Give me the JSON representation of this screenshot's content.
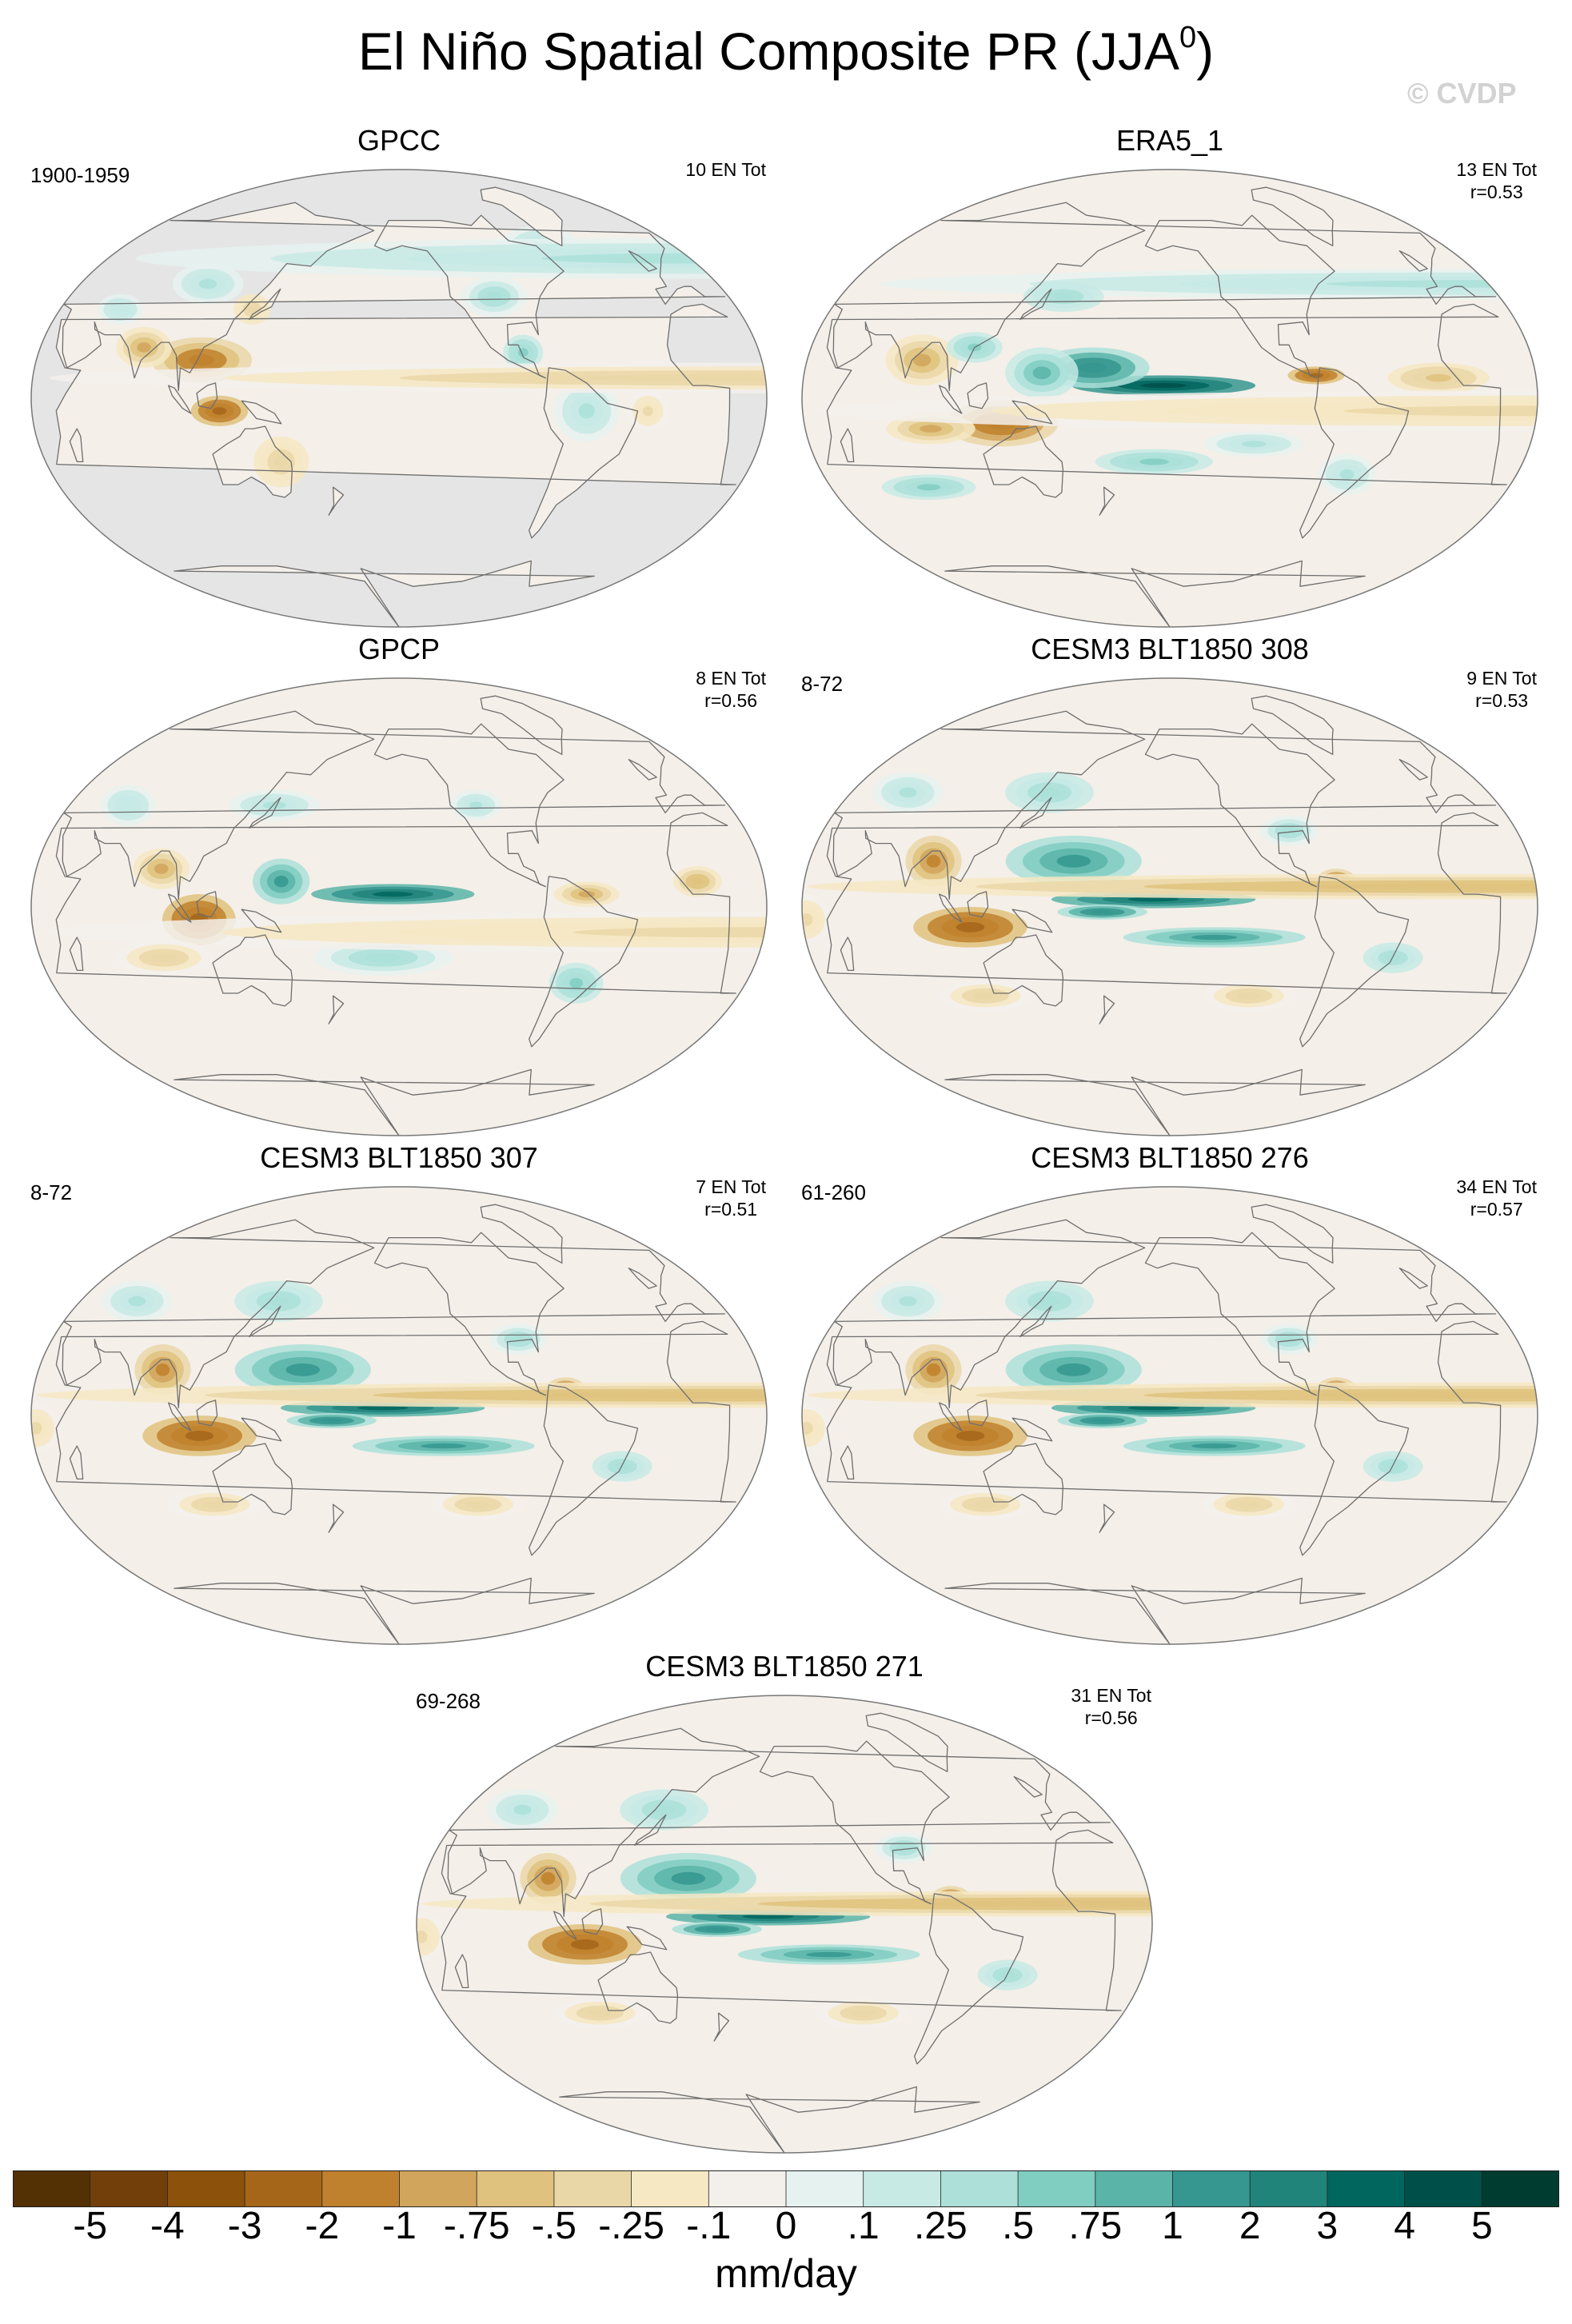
{
  "figure": {
    "title": "El Niño Spatial Composite PR (JJA",
    "title_superscript": "0",
    "title_suffix": ")",
    "watermark": "© CVDP"
  },
  "colors": {
    "land_mask": "#e5e5e5",
    "ocean_neutral": "#f4efe9",
    "coastline": "#6e6e6e"
  },
  "chart_data": {
    "type": "map",
    "projection": "Robinson-like global, Pacific-centered",
    "variable": "Precipitation (PR) composite, El Niño, JJA year 0",
    "units": "mm/day",
    "panels": [
      {
        "title": "GPCC",
        "period": "1900-1959",
        "stats": [
          "10 EN Tot"
        ],
        "masked": true,
        "pattern": "gpcc"
      },
      {
        "title": "ERA5_1",
        "period": "",
        "stats": [
          "13 EN Tot",
          "r=0.53"
        ],
        "masked": false,
        "pattern": "era5"
      },
      {
        "title": "GPCP",
        "period": "",
        "stats": [
          "8 EN Tot",
          "r=0.56"
        ],
        "masked": false,
        "pattern": "gpcp"
      },
      {
        "title": "CESM3 BLT1850 308",
        "period": "8-72",
        "stats": [
          "9 EN Tot",
          "r=0.53"
        ],
        "masked": false,
        "pattern": "model"
      },
      {
        "title": "CESM3 BLT1850 307",
        "period": "8-72",
        "stats": [
          "7 EN Tot",
          "r=0.51"
        ],
        "masked": false,
        "pattern": "model"
      },
      {
        "title": "CESM3 BLT1850 276",
        "period": "61-260",
        "stats": [
          "34 EN Tot",
          "r=0.57"
        ],
        "masked": false,
        "pattern": "model"
      },
      {
        "title": "CESM3 BLT1850 271",
        "period": "69-268",
        "stats": [
          "31 EN Tot",
          "r=0.56"
        ],
        "masked": false,
        "pattern": "model"
      }
    ],
    "colorbar": {
      "levels": [
        "-5",
        "-4",
        "-3",
        "-2",
        "-1",
        "-.75",
        "-.5",
        "-.25",
        "-.1",
        "0",
        ".1",
        ".25",
        ".5",
        ".75",
        "1",
        "2",
        "3",
        "4",
        "5"
      ],
      "colors": [
        "#543005",
        "#723f0a",
        "#8c510a",
        "#a5661a",
        "#bf812d",
        "#d1a55c",
        "#dfc27d",
        "#ead7a8",
        "#f6e8c3",
        "#f3f0ec",
        "#e6f2f0",
        "#c7eae5",
        "#ace0d9",
        "#80cdc1",
        "#5ab4a8",
        "#35978f",
        "#21847a",
        "#01665e",
        "#00504a",
        "#003c30"
      ],
      "units": "mm/day"
    }
  }
}
